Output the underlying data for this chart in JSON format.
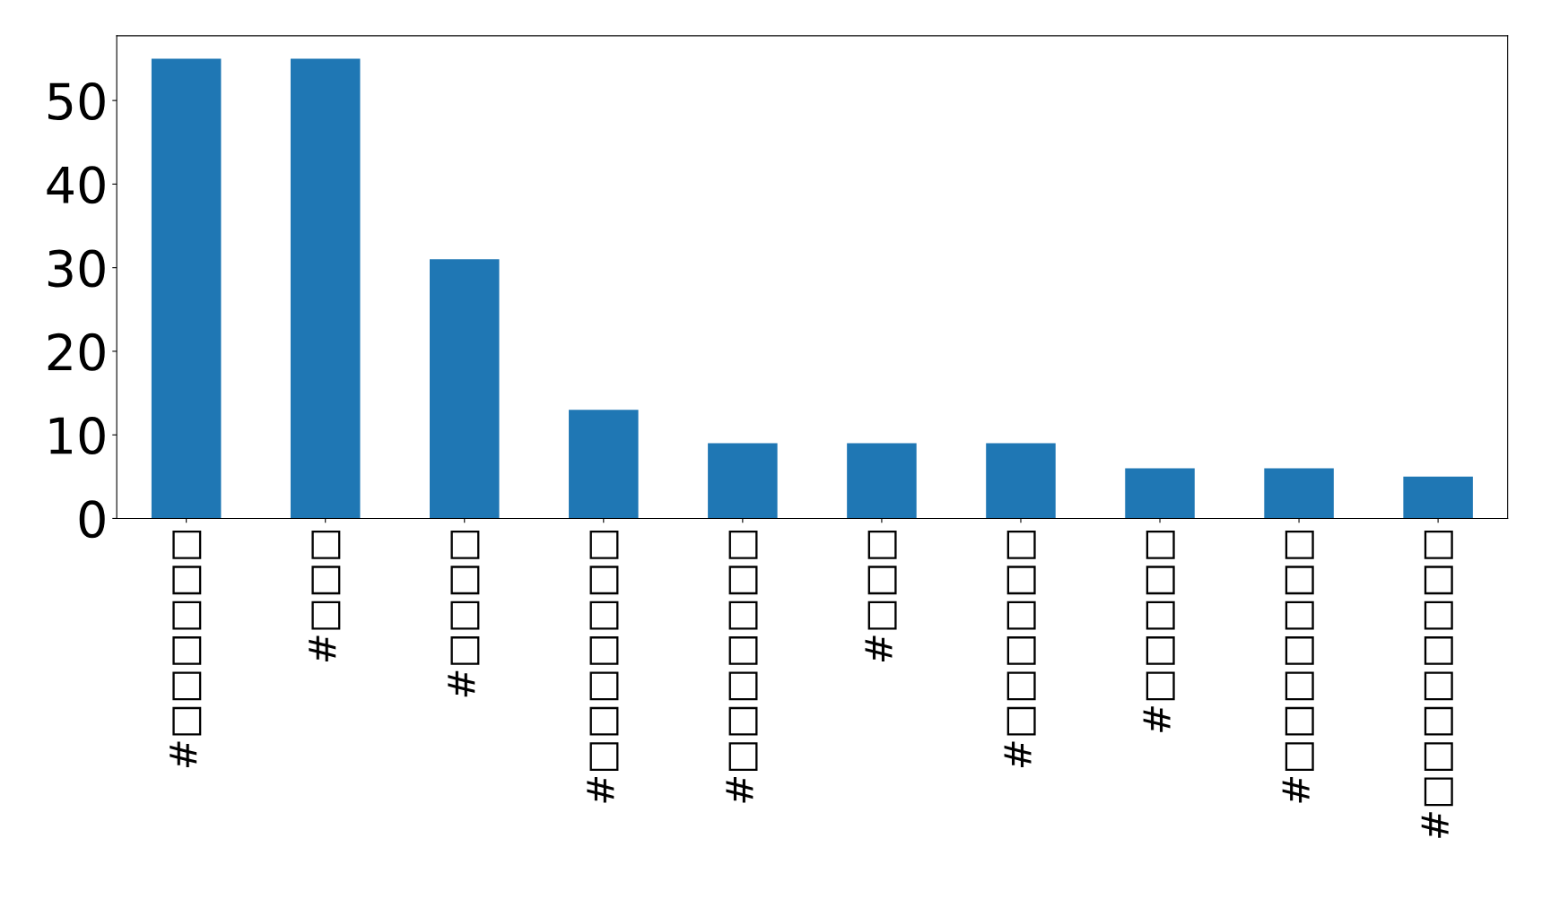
{
  "chart_data": {
    "type": "bar",
    "categories": [
      "#□□□□□□",
      "#□□□",
      "#□□□□",
      "#□□□□□□□",
      "#□□□□□□□",
      "#□□□",
      "#□□□□□□",
      "#□□□□□",
      "#□□□□□□□",
      "#□□□□□□□□"
    ],
    "values": [
      55,
      55,
      31,
      13,
      9,
      9,
      9,
      6,
      6,
      5
    ],
    "color": "#1f77b4",
    "ylim": [
      0,
      57.75
    ],
    "yticks": [
      0,
      10,
      20,
      30,
      40,
      50
    ],
    "grid": false,
    "legend": false
  }
}
